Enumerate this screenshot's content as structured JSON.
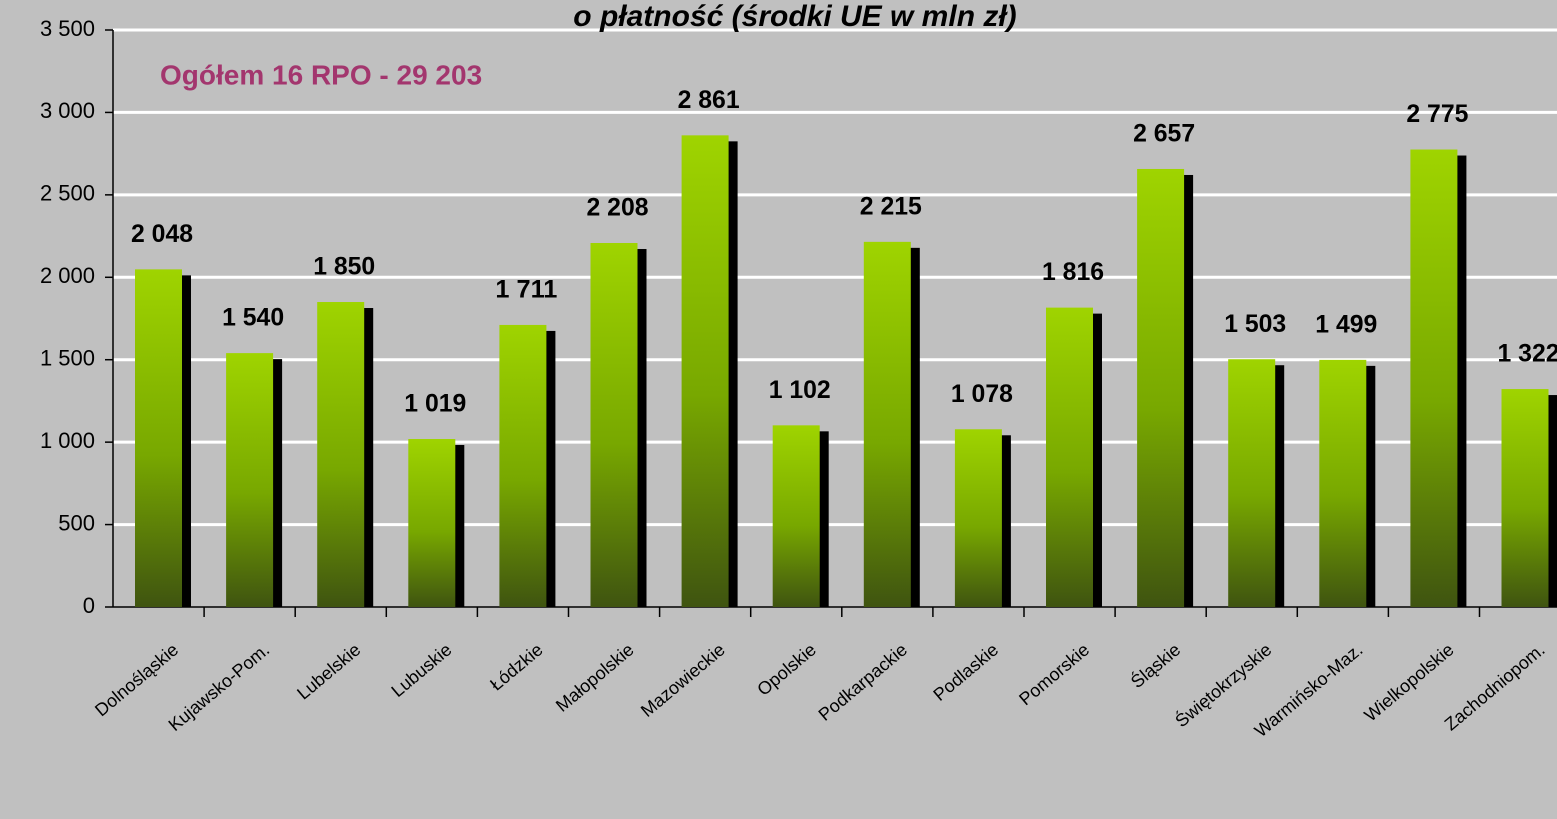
{
  "chart_data": {
    "type": "bar",
    "title": "o płatność (środki UE w mln zł)",
    "annotation": "Ogółem 16 RPO - 29 203",
    "categories": [
      "Dolnośląskie",
      "Kujawsko-Pom.",
      "Lubelskie",
      "Lubuskie",
      "Łódzkie",
      "Małopolskie",
      "Mazowieckie",
      "Opolskie",
      "Podkarpackie",
      "Podlaskie",
      "Pomorskie",
      "Śląskie",
      "Świętokrzyskie",
      "Warmińsko-Maz.",
      "Wielkopolskie",
      "Zachodniopom."
    ],
    "values": [
      2048,
      1540,
      1850,
      1019,
      1711,
      2208,
      2861,
      1102,
      2215,
      1078,
      1816,
      2657,
      1503,
      1499,
      2775,
      1322
    ],
    "value_labels": [
      "2 048",
      "1 540",
      "1 850",
      "1 019",
      "1 711",
      "2 208",
      "2 861",
      "1 102",
      "2 215",
      "1 078",
      "1 816",
      "2 657",
      "1 503",
      "1 499",
      "2 775",
      "1 322"
    ],
    "color": "#8cc400",
    "ylim": [
      0,
      3500
    ],
    "yticks": [
      0,
      500,
      {
        "value": 1000,
        "label": "1 000"
      },
      {
        "value": 1500,
        "label": "1 500"
      },
      {
        "value": 2000,
        "label": "2 000"
      },
      {
        "value": 2500,
        "label": "2 500"
      },
      {
        "value": 3000,
        "label": "3 000"
      },
      {
        "value": 3500,
        "label": "3 500"
      }
    ],
    "grid": true
  }
}
